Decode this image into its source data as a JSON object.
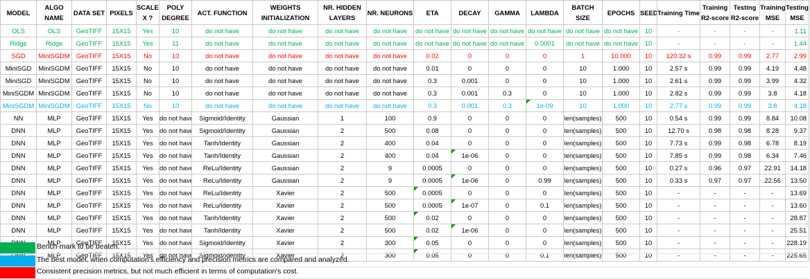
{
  "sheet": {
    "headers": [
      "MODEL",
      "ALGO NAME",
      "DATA SET",
      "PIXELS",
      "SCALED X ?",
      "POLY DEGREE",
      "ACT. FUNCTION",
      "WEIGHTS INITIALIZATION",
      "NR. HIDDEN LAYERS",
      "NR. NEURONS",
      "ETA",
      "DECAY",
      "GAMMA",
      "LAMBDA",
      "BATCH SIZE",
      "EPOCHS",
      "SEED",
      "Training Time",
      "Training R2-score",
      "Testing R2-score",
      "Training MSE",
      "Testing MSE"
    ],
    "rows": [
      {
        "style": "green",
        "cells": [
          "OLS",
          "OLS",
          "GeoTIFF",
          "15X15",
          "Yes",
          "10",
          "do not have",
          "do not have",
          "do not have",
          "do not have",
          "do not have",
          "do not have",
          "do not have",
          "do not have",
          "do not have",
          "do not have",
          "10",
          "-",
          "-",
          "-",
          "-",
          "1.11"
        ]
      },
      {
        "style": "green",
        "cells": [
          "Ridge",
          "Ridge",
          "GeoTIFF",
          "15X15",
          "Yes",
          "11",
          "do not have",
          "do not have",
          "do not have",
          "do not have",
          "do not have",
          "do not have",
          "do not have",
          "0.0001",
          "do not have",
          "do not have",
          "10",
          "-",
          "-",
          "-",
          "-",
          "1.44"
        ]
      },
      {
        "style": "red",
        "cells": [
          "SGD",
          "MiniSGDM",
          "GeoTIFF",
          "15X15",
          "No",
          "10",
          "do not have",
          "do not have",
          "do not have",
          "do not have",
          "0.02",
          "0",
          "0",
          "0",
          "1",
          "10.000",
          "10",
          "120.32 s",
          "0.99",
          "0.99",
          "2.77",
          "2.99"
        ]
      },
      {
        "style": "",
        "cells": [
          "MiniSGD",
          "MiniSGDM",
          "GeoTIFF",
          "15X15",
          "No",
          "10",
          "do not have",
          "do not have",
          "do not have",
          "do not have",
          "0.01",
          "0",
          "0",
          "0",
          "10",
          "1.000",
          "10",
          "2.57 s",
          "0.99",
          "0.99",
          "4.19",
          "4.48"
        ]
      },
      {
        "style": "",
        "cells": [
          "MiniSGD",
          "MiniSGDM",
          "GeoTIFF",
          "15X15",
          "No",
          "10",
          "do not have",
          "do not have",
          "do not have",
          "do not have",
          "0.3",
          "0.001",
          "0",
          "0",
          "10",
          "1.000",
          "10",
          "2.61 s",
          "0.99",
          "0.99",
          "3.99",
          "4.32"
        ]
      },
      {
        "style": "",
        "cells": [
          "MiniSGDM",
          "MiniSGDM",
          "GeoTIFF",
          "15X15",
          "No",
          "10",
          "do not have",
          "do not have",
          "do not have",
          "do not have",
          "0.3",
          "0.001",
          "0.3",
          "0",
          "10",
          "1.000",
          "10",
          "2.82 s",
          "0.99",
          "0.99",
          "3.8",
          "4.18"
        ]
      },
      {
        "style": "cyan",
        "cells": [
          "MiniSGDM",
          "MiniSGDM",
          "GeoTIFF",
          "15X15",
          "No",
          "10",
          "do not have",
          "do not have",
          "do not have",
          "do not have",
          "0.3",
          "0.001",
          "0.3",
          "1e-09",
          "10",
          "1.000",
          "10",
          "2.77 s",
          "0.99",
          "0.99",
          "3.8",
          "4.18"
        ]
      },
      {
        "style": "",
        "cells": [
          "NN",
          "MLP",
          "GeoTIFF",
          "15X15",
          "Yes",
          "do not have",
          "Sigmoid/Identity",
          "Gaussian",
          "1",
          "100",
          "0.9",
          "0",
          "0",
          "0",
          "len(samples)",
          "500",
          "10",
          "0.54 s",
          "0.99",
          "0.99",
          "8.84",
          "10.08"
        ]
      },
      {
        "style": "",
        "cells": [
          "DNN",
          "MLP",
          "GeoTIFF",
          "15X15",
          "Yes",
          "do not have",
          "Sigmoid/Identity",
          "Gaussian",
          "2",
          "500",
          "0.08",
          "0",
          "0",
          "0",
          "len(samples)",
          "500",
          "10",
          "12.70 s",
          "0.98",
          "0.98",
          "8.28",
          "9.37"
        ]
      },
      {
        "style": "",
        "cells": [
          "DNN",
          "MLP",
          "GeoTIFF",
          "15X15",
          "Yes",
          "do not have",
          "Tanh/Identity",
          "Gaussian",
          "2",
          "400",
          "0.04",
          "0",
          "0",
          "0",
          "len(samples)",
          "500",
          "10",
          "7.73 s",
          "0.99",
          "0.98",
          "6.78",
          "8.19"
        ]
      },
      {
        "style": "",
        "cells": [
          "DNN",
          "MLP",
          "GeoTIFF",
          "15X15",
          "Yes",
          "do not have",
          "Tanh/Identity",
          "Gaussian",
          "2",
          "400",
          "0.04",
          "1e-06",
          "0",
          "0",
          "len(samples)",
          "500",
          "10",
          "7.85 s",
          "0.99",
          "0.98",
          "6.34",
          "7.46"
        ]
      },
      {
        "style": "",
        "cells": [
          "DNN",
          "MLP",
          "GeoTIFF",
          "15X15",
          "Yes",
          "do not have",
          "ReLu/Identity",
          "Gaussian",
          "2",
          "9",
          "0.0005",
          "0",
          "0",
          "0",
          "len(samples)",
          "500",
          "10",
          "0.27 s",
          "0.96",
          "0.97",
          "22.91",
          "14.18"
        ]
      },
      {
        "style": "",
        "cells": [
          "DNN",
          "MLP",
          "GeoTIFF",
          "15X15",
          "Yes",
          "do not have",
          "ReLu/Identity",
          "Gaussian",
          "2",
          "9",
          "0.0005",
          "1e-06",
          "0",
          "0.99",
          "len(samples)",
          "500",
          "10",
          "0.33 s",
          "0.97",
          "0.97",
          "22.56",
          "13.50"
        ]
      },
      {
        "style": "",
        "cells": [
          "DNN",
          "MLP",
          "GeoTIFF",
          "15X15",
          "Yes",
          "do not have",
          "ReLu/Identity",
          "Xavier",
          "2",
          "500",
          "0.0005",
          "0",
          "0",
          "0",
          "len(samples)",
          "500",
          "10",
          "-",
          "-",
          "-",
          "-",
          "13.69"
        ]
      },
      {
        "style": "",
        "cells": [
          "DNN",
          "MLP",
          "GeoTIFF",
          "15X15",
          "Yes",
          "do not have",
          "ReLu/Identity",
          "Xavier",
          "2",
          "500",
          "0.0005",
          "1e-07",
          "0",
          "0.1",
          "len(samples)",
          "500",
          "10",
          "-",
          "-",
          "-",
          "-",
          "13.60"
        ]
      },
      {
        "style": "",
        "cells": [
          "DNN",
          "MLP",
          "GeoTIFF",
          "15X15",
          "Yes",
          "do not have",
          "Tanh/Identity",
          "Xavier",
          "2",
          "500",
          "0.02",
          "0",
          "0",
          "0",
          "len(samples)",
          "500",
          "10",
          "-",
          "-",
          "-",
          "-",
          "28.87"
        ]
      },
      {
        "style": "",
        "cells": [
          "DNN",
          "MLP",
          "GeoTIFF",
          "15X15",
          "Yes",
          "do not have",
          "Tanh/Identity",
          "Xavier",
          "2",
          "500",
          "0.02",
          "1e-06",
          "0",
          "0",
          "len(samples)",
          "500",
          "10",
          "-",
          "-",
          "-",
          "-",
          "25.51"
        ]
      },
      {
        "style": "",
        "cells": [
          "DNN",
          "MLP",
          "GeoTIFF",
          "15X15",
          "Yes",
          "do not have",
          "Sigmoid/Identity",
          "Xavier",
          "2",
          "300",
          "0.05",
          "0",
          "0",
          "0",
          "len(samples)",
          "500",
          "10",
          "-",
          "-",
          "-",
          "-",
          "228.19"
        ]
      },
      {
        "style": "",
        "cells": [
          "DNN",
          "MLP",
          "GeoTIFF",
          "15X15",
          "Yes",
          "do not have",
          "Sigmoid/Identity",
          "Xavier",
          "2",
          "300",
          "0.05",
          "0",
          "0",
          "0.1",
          "len(samples)",
          "500",
          "10",
          "-",
          "-",
          "-",
          "-",
          "225.65"
        ]
      }
    ]
  },
  "legend": [
    {
      "color": "#00b050",
      "text": "Bench-mark to be beaten."
    },
    {
      "color": "#00b0f0",
      "text": "The best model, when computation's efficiency and precision metrics are compared and analyzed."
    },
    {
      "color": "#ff0000",
      "text": "Consistent precision metrics, but not much efficient in terms of computation's cost."
    }
  ],
  "colors": {
    "benchmark_green": "#00b050",
    "best_cyan": "#00b0f0",
    "costly_red": "#ff0000",
    "comment_marker": "#00a000"
  }
}
